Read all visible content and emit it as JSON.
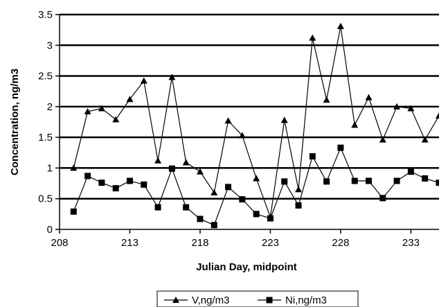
{
  "chart_data": {
    "type": "line",
    "title": "",
    "xlabel": "Julian Day, midpoint",
    "ylabel": "Concentration, ng/m3",
    "xlim": [
      208,
      235
    ],
    "ylim": [
      0,
      3.5
    ],
    "x_ticks": [
      208,
      213,
      218,
      223,
      228,
      233
    ],
    "y_ticks": [
      0,
      0.5,
      1,
      1.5,
      2,
      2.5,
      3,
      3.5
    ],
    "y_tick_labels": [
      "0",
      "0.5",
      "1",
      "1.5",
      "2",
      "2.5",
      "3",
      "3.5"
    ],
    "grid": "horizontal",
    "legend_position": "bottom",
    "x": [
      209,
      210,
      211,
      212,
      213,
      214,
      215,
      216,
      217,
      218,
      219,
      220,
      221,
      222,
      223,
      224,
      225,
      226,
      227,
      228,
      229,
      230,
      231,
      232,
      233,
      234,
      235
    ],
    "series": [
      {
        "name": "V,ng/m3",
        "marker": "triangle",
        "values": [
          1.0,
          1.92,
          1.97,
          1.79,
          2.12,
          2.42,
          1.12,
          2.48,
          1.09,
          0.94,
          0.6,
          1.77,
          1.53,
          0.83,
          0.2,
          1.78,
          0.65,
          3.12,
          2.11,
          3.31,
          1.7,
          2.15,
          1.46,
          2.0,
          1.97,
          1.46,
          1.85
        ]
      },
      {
        "name": "Ni,ng/m3",
        "marker": "square",
        "values": [
          0.29,
          0.87,
          0.76,
          0.67,
          0.79,
          0.73,
          0.36,
          0.99,
          0.36,
          0.17,
          0.07,
          0.69,
          0.49,
          0.25,
          0.18,
          0.78,
          0.39,
          1.19,
          0.78,
          1.33,
          0.79,
          0.79,
          0.51,
          0.79,
          0.94,
          0.83,
          0.76
        ]
      }
    ]
  }
}
